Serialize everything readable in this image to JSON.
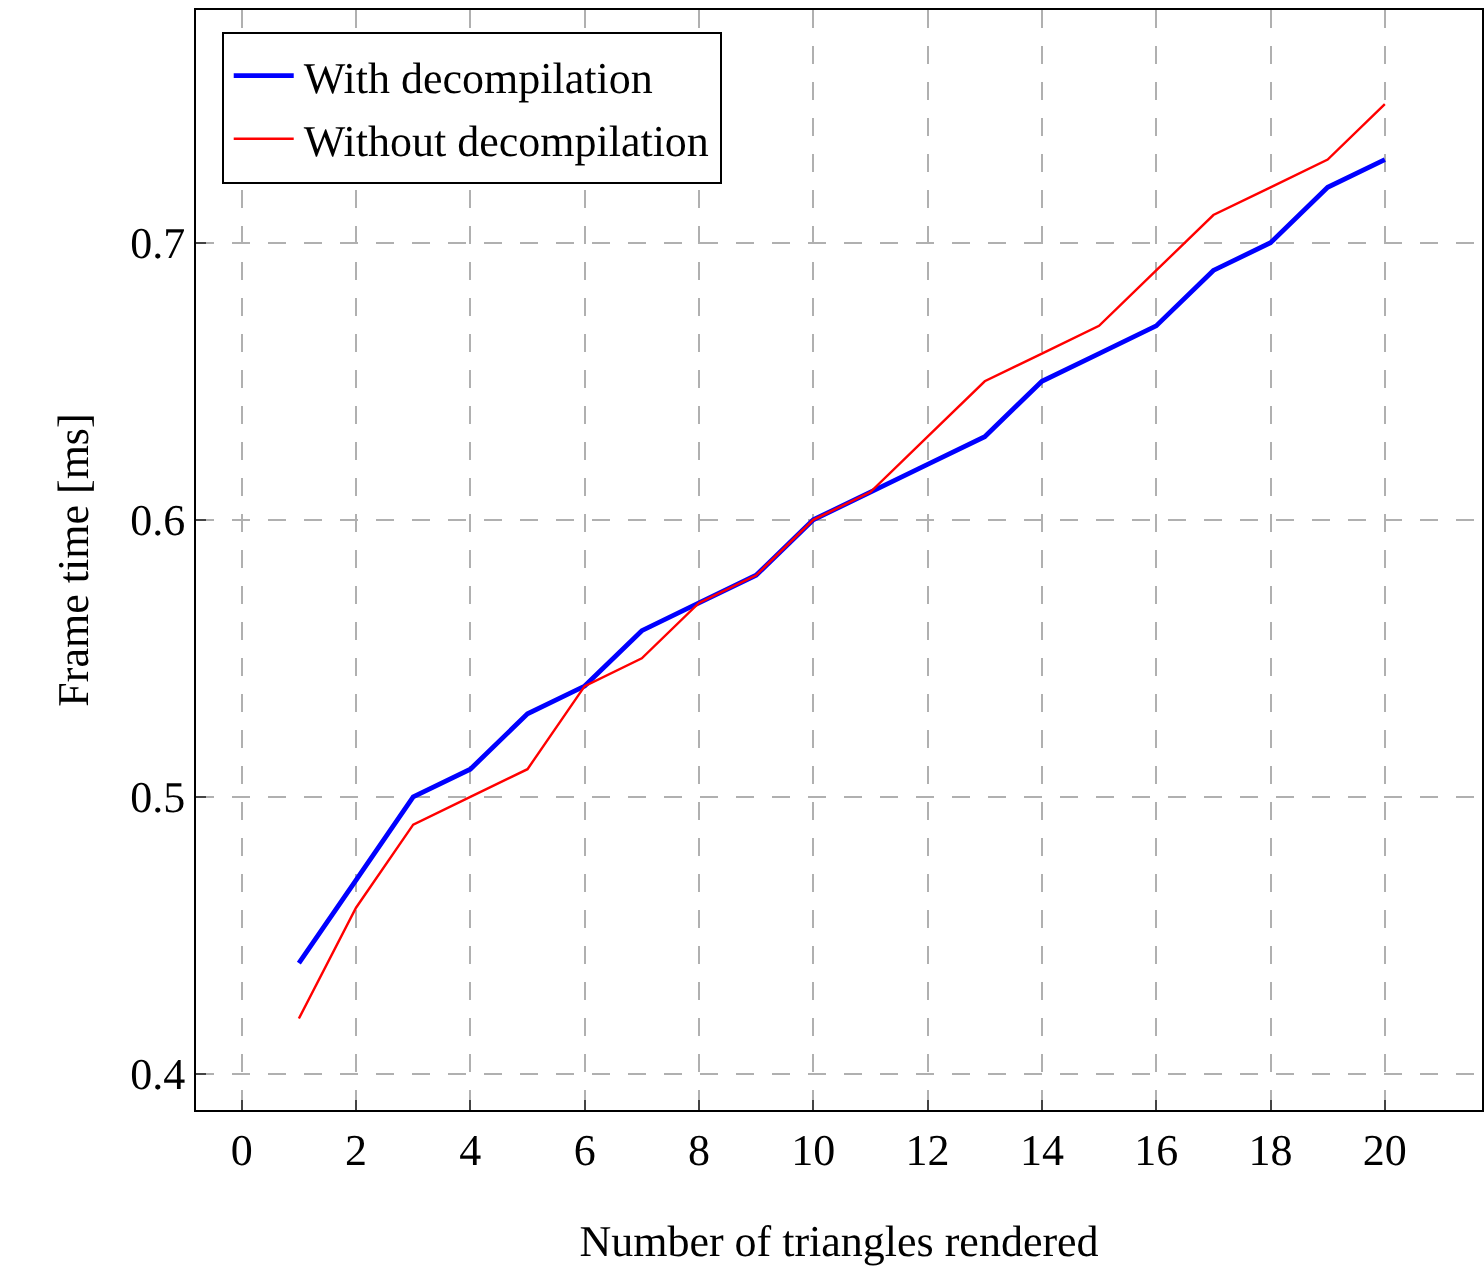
{
  "chart_data": {
    "type": "line",
    "xlabel": "Number of triangles rendered",
    "ylabel": "Frame time [ms]",
    "x": [
      1,
      2,
      3,
      4,
      5,
      6,
      7,
      8,
      9,
      10,
      11,
      12,
      13,
      14,
      15,
      16,
      17,
      18,
      19,
      20
    ],
    "series": [
      {
        "name": "With decompilation",
        "color": "#0000ff",
        "values": [
          0.44,
          0.47,
          0.5,
          0.51,
          0.53,
          0.54,
          0.56,
          0.57,
          0.58,
          0.6,
          0.61,
          0.62,
          0.63,
          0.65,
          0.66,
          0.67,
          0.69,
          0.7,
          0.72,
          0.73
        ]
      },
      {
        "name": "Without decompilation",
        "color": "#ff0000",
        "values": [
          0.42,
          0.46,
          0.49,
          0.5,
          0.51,
          0.54,
          0.55,
          0.57,
          0.58,
          0.6,
          0.61,
          0.63,
          0.65,
          0.66,
          0.67,
          0.69,
          0.71,
          0.72,
          0.73,
          0.75
        ]
      }
    ],
    "xlim": [
      -0.8,
      21.7
    ],
    "xticks": [
      0,
      2,
      4,
      6,
      8,
      10,
      12,
      14,
      16,
      18,
      20
    ],
    "ylim": [
      0.387,
      0.784
    ],
    "yticks": [
      {
        "value": 0.4,
        "label": "0.4"
      },
      {
        "value": 0.5,
        "label": "0.5"
      },
      {
        "value": 0.6,
        "label": "0.6"
      },
      {
        "value": 0.7,
        "label": "0.7"
      }
    ],
    "grid": true,
    "legend": "top left",
    "line_style": "solid",
    "marker": "none"
  }
}
